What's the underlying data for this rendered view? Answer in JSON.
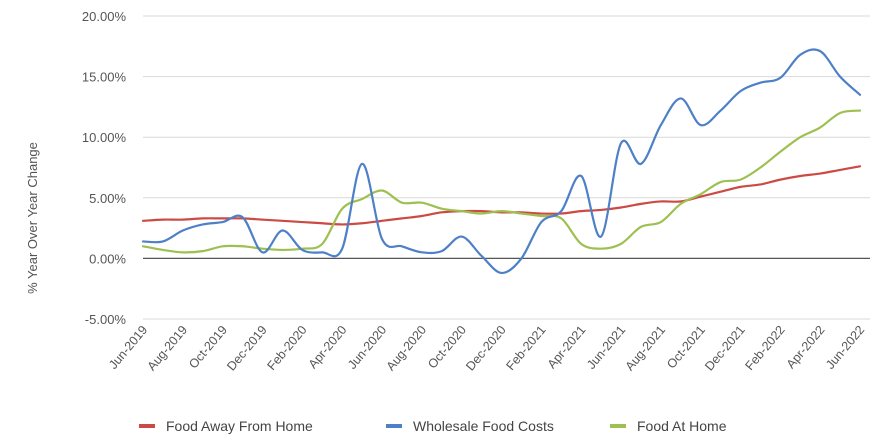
{
  "chart_data": {
    "type": "line",
    "title": "",
    "ylabel": "% Year Over Year Change",
    "xlabel": "",
    "ylim": [
      -5,
      20
    ],
    "yticks": [
      20,
      15,
      10,
      5,
      0,
      -5
    ],
    "ytick_labels": [
      "20.00%",
      "15.00%",
      "10.00%",
      "5.00%",
      "0.00%",
      "-5.00%"
    ],
    "grid": true,
    "legend_position": "bottom",
    "x": [
      "Jun-2019",
      "Jul-2019",
      "Aug-2019",
      "Sep-2019",
      "Oct-2019",
      "Nov-2019",
      "Dec-2019",
      "Jan-2020",
      "Feb-2020",
      "Mar-2020",
      "Apr-2020",
      "May-2020",
      "Jun-2020",
      "Jul-2020",
      "Aug-2020",
      "Sep-2020",
      "Oct-2020",
      "Nov-2020",
      "Dec-2020",
      "Jan-2021",
      "Feb-2021",
      "Mar-2021",
      "Apr-2021",
      "May-2021",
      "Jun-2021",
      "Jul-2021",
      "Aug-2021",
      "Sep-2021",
      "Oct-2021",
      "Nov-2021",
      "Dec-2021",
      "Jan-2022",
      "Feb-2022",
      "Mar-2022",
      "Apr-2022",
      "May-2022",
      "Jun-2022"
    ],
    "xtick_labels": [
      "Jun-2019",
      "Aug-2019",
      "Oct-2019",
      "Dec-2019",
      "Feb-2020",
      "Apr-2020",
      "Jun-2020",
      "Aug-2020",
      "Oct-2020",
      "Dec-2020",
      "Feb-2021",
      "Apr-2021",
      "Jun-2021",
      "Aug-2021",
      "Oct-2021",
      "Dec-2021",
      "Feb-2022",
      "Apr-2022",
      "Jun-2022"
    ],
    "series": [
      {
        "name": "Food Away From Home",
        "color": "#cc4a44",
        "values": [
          3.1,
          3.2,
          3.2,
          3.3,
          3.3,
          3.3,
          3.2,
          3.1,
          3.0,
          2.9,
          2.8,
          2.9,
          3.1,
          3.3,
          3.5,
          3.8,
          3.9,
          3.9,
          3.8,
          3.8,
          3.7,
          3.7,
          3.9,
          4.0,
          4.2,
          4.5,
          4.7,
          4.7,
          5.1,
          5.5,
          5.9,
          6.1,
          6.5,
          6.8,
          7.0,
          7.3,
          7.6
        ]
      },
      {
        "name": "Wholesale Food Costs",
        "color": "#4e80c7",
        "values": [
          1.4,
          1.4,
          2.3,
          2.8,
          3.0,
          3.4,
          0.5,
          2.3,
          0.7,
          0.5,
          0.8,
          7.8,
          1.6,
          1.0,
          0.5,
          0.6,
          1.8,
          0.2,
          -1.2,
          0.0,
          3.0,
          3.9,
          6.8,
          1.8,
          9.5,
          7.8,
          11.0,
          13.2,
          11.0,
          12.2,
          13.8,
          14.5,
          14.9,
          16.8,
          17.1,
          15.0,
          13.5
        ]
      },
      {
        "name": "Food At Home",
        "color": "#9ec050",
        "values": [
          1.0,
          0.7,
          0.5,
          0.6,
          1.0,
          1.0,
          0.8,
          0.7,
          0.8,
          1.2,
          4.1,
          4.9,
          5.6,
          4.6,
          4.6,
          4.1,
          3.9,
          3.7,
          3.9,
          3.7,
          3.5,
          3.3,
          1.2,
          0.8,
          1.2,
          2.6,
          3.0,
          4.5,
          5.3,
          6.3,
          6.5,
          7.5,
          8.8,
          10.0,
          10.8,
          12.0,
          12.2
        ]
      }
    ]
  }
}
